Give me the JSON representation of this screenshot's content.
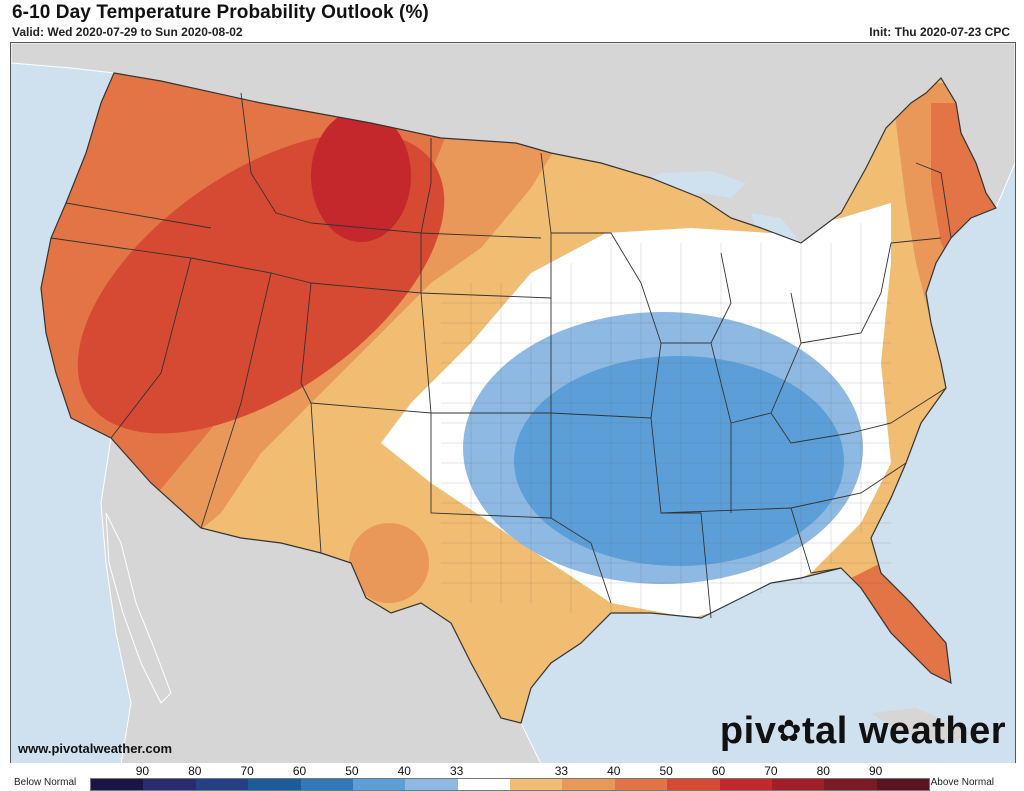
{
  "header": {
    "title": "6-10 Day Temperature Probability Outlook (%)",
    "valid": "Valid: Wed 2020-07-29 to Sun 2020-08-02",
    "init": "Init: Thu 2020-07-23 CPC"
  },
  "footer": {
    "source": "www.pivotalweather.com",
    "brand_left": "piv",
    "brand_right": "tal weather"
  },
  "legend": {
    "below_label": "Below Normal",
    "above_label": "Above Normal",
    "ticks": [
      "90",
      "80",
      "70",
      "60",
      "50",
      "40",
      "33",
      "33",
      "40",
      "50",
      "60",
      "70",
      "80",
      "90"
    ],
    "colors": [
      "#1b1446",
      "#2a2a6e",
      "#253f86",
      "#1c5c9d",
      "#3279b9",
      "#5c9fd8",
      "#8eb9e2",
      "#ffffff",
      "#f0bd72",
      "#e9985a",
      "#e27445",
      "#d64a33",
      "#c5282c",
      "#a21d2a",
      "#7b1a24",
      "#5a1420"
    ]
  },
  "map": {
    "category": "temperature outlook",
    "regions": [
      {
        "name": "above-normal-33-40",
        "color": "#f0bd72"
      },
      {
        "name": "above-normal-40-50",
        "color": "#e9985a"
      },
      {
        "name": "above-normal-50-60",
        "color": "#e27445"
      },
      {
        "name": "above-normal-60-70",
        "color": "#d64a33"
      },
      {
        "name": "above-normal-70-80",
        "color": "#c5282c"
      },
      {
        "name": "below-normal-33-40",
        "color": "#8eb9e2"
      },
      {
        "name": "below-normal-40-50",
        "color": "#5c9fd8"
      },
      {
        "name": "near-normal",
        "color": "#ffffff"
      }
    ]
  }
}
